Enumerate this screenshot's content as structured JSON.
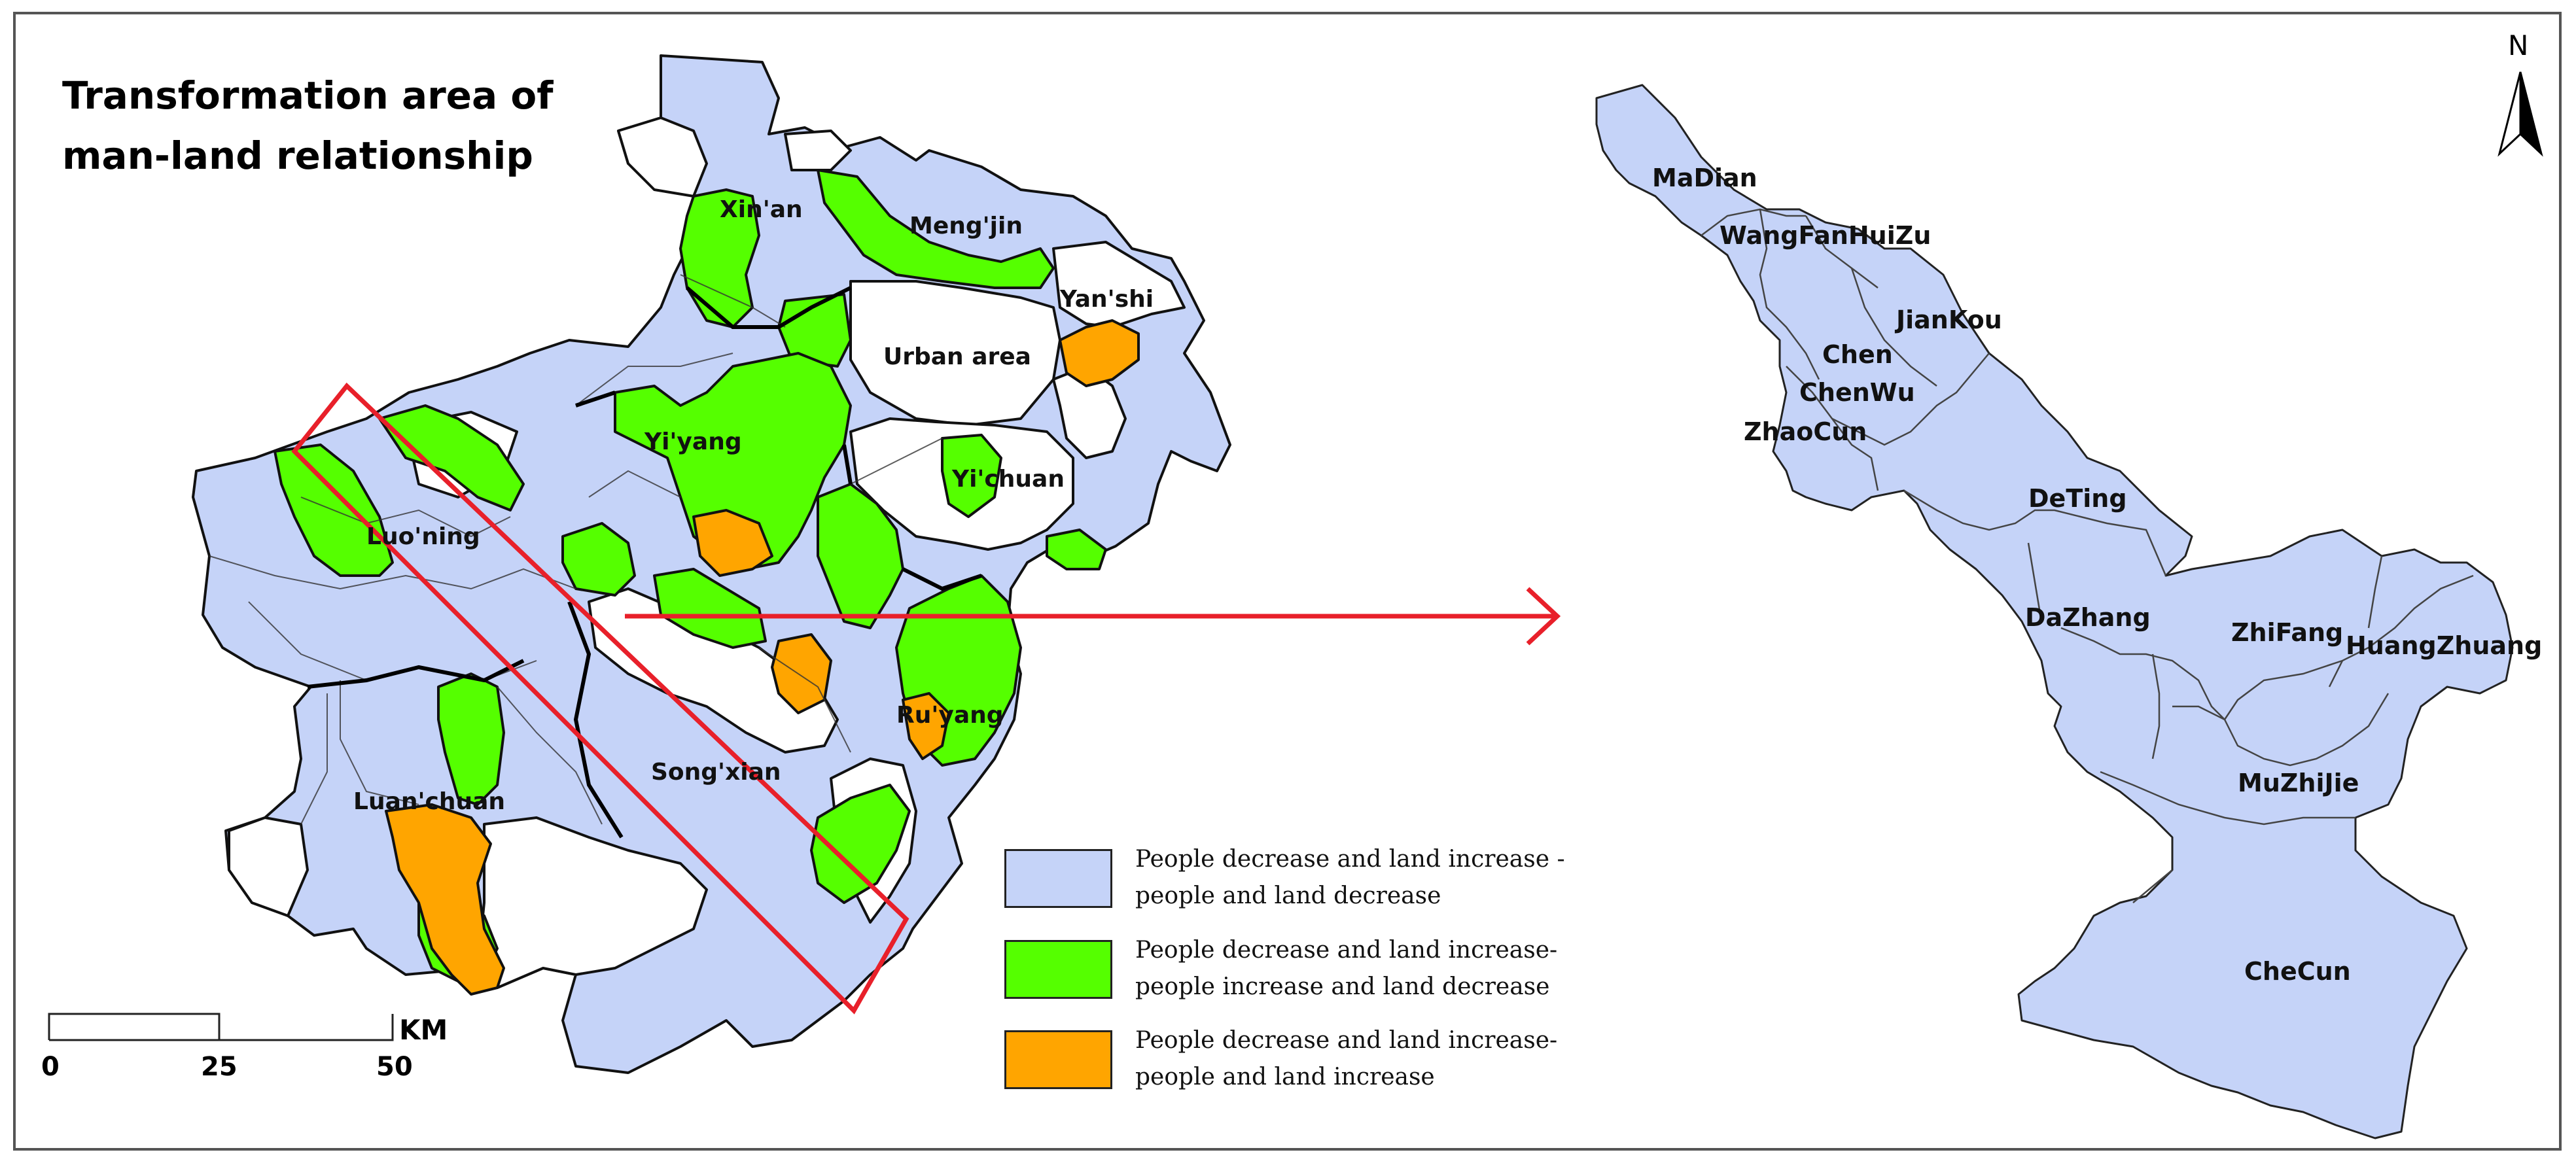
{
  "map": {
    "title_line1": "Transformation area of",
    "title_line2": "man-land relationship"
  },
  "colors": {
    "blue": "#C5D3F8",
    "green": "#55FF00",
    "orange": "#FFA500",
    "white": "#FFFFFF",
    "highlight": "#E8202A"
  },
  "left_labels": {
    "xinan": "Xin'an",
    "mengjin": "Meng'jin",
    "yanshi": "Yan'shi",
    "urban": "Urban area",
    "yiyang": "Yi'yang",
    "yichuan": "Yi'chuan",
    "luoning": "Luo'ning",
    "ruyang": "Ru'yang",
    "songxian": "Song'xian",
    "luanchuan": "Luan'chuan"
  },
  "right_labels": {
    "madian": "MaDian",
    "wangfanhuizu": "WangFanHuiZu",
    "jiankou": "JianKou",
    "chen": "Chen",
    "chenwu": "ChenWu",
    "zhaocun": "ZhaoCun",
    "deting": "DeTing",
    "dazhang": "DaZhang",
    "zhifang": "ZhiFang",
    "huangzhuang": "HuangZhuang",
    "muzhijie": "MuZhiJie",
    "checun": "CheCun"
  },
  "legend": [
    {
      "line1": "People decrease and land increase -",
      "line2": "people and land decrease",
      "color": "#C5D3F8"
    },
    {
      "line1": "People decrease and land increase-",
      "line2": "people increase and land decrease",
      "color": "#55FF00"
    },
    {
      "line1": "People decrease and land increase-",
      "line2": "people and land increase",
      "color": "#FFA500"
    }
  ],
  "scale_bar": {
    "labels": [
      "0",
      "25",
      "50"
    ],
    "unit": "KM"
  },
  "north_arrow": {
    "label": "N"
  }
}
